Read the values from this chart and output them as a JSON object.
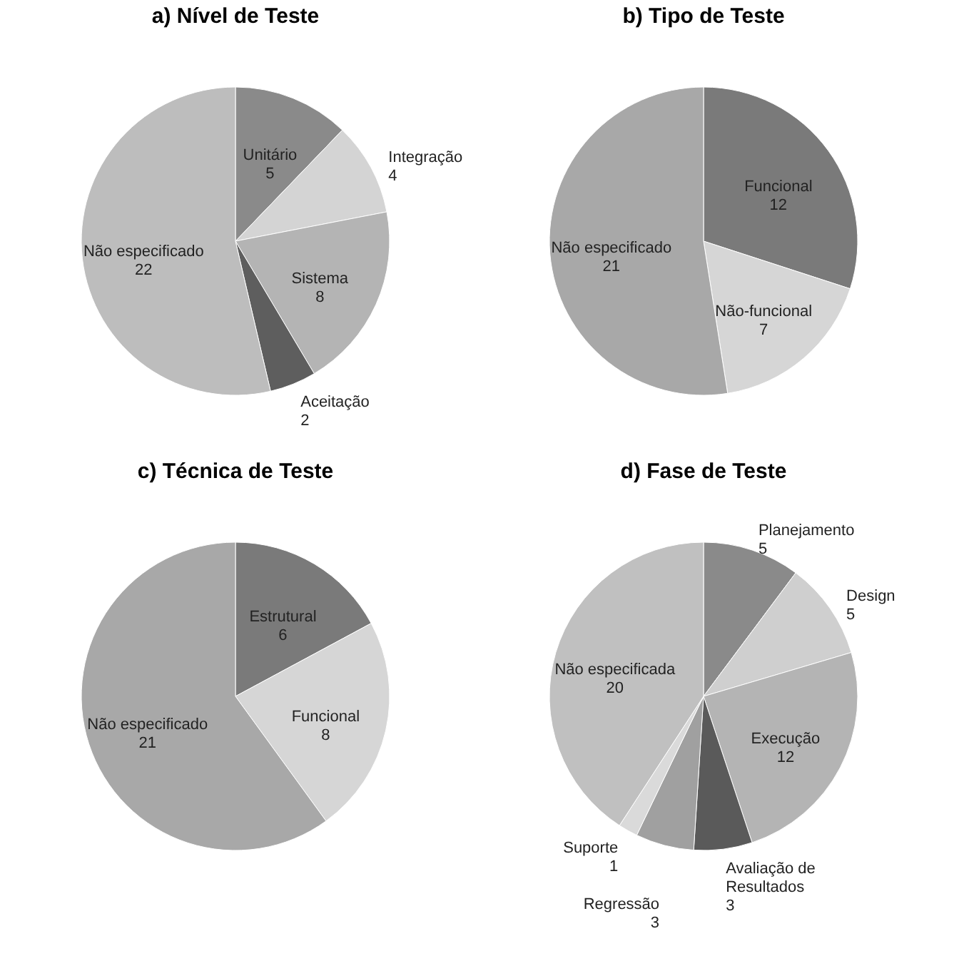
{
  "chart_data": [
    {
      "type": "pie",
      "title": "a) Nível de Teste",
      "categories": [
        "Unitário",
        "Integração",
        "Sistema",
        "Aceitação",
        "Não especificado"
      ],
      "values": [
        5,
        4,
        8,
        2,
        22
      ],
      "colors": [
        "#8a8a8a",
        "#d4d4d4",
        "#b4b4b4",
        "#5e5e5e",
        "#bdbdbd"
      ],
      "data_labels": true,
      "legend": false
    },
    {
      "type": "pie",
      "title": "b) Tipo de Teste",
      "categories": [
        "Funcional",
        "Não-funcional",
        "Não especificado"
      ],
      "values": [
        12,
        7,
        21
      ],
      "colors": [
        "#7a7a7a",
        "#d6d6d6",
        "#a8a8a8"
      ],
      "data_labels": true,
      "legend": false
    },
    {
      "type": "pie",
      "title": "c) Técnica de Teste",
      "categories": [
        "Estrutural",
        "Funcional",
        "Não especificado"
      ],
      "values": [
        6,
        8,
        21
      ],
      "colors": [
        "#7a7a7a",
        "#d6d6d6",
        "#a8a8a8"
      ],
      "data_labels": true,
      "legend": false
    },
    {
      "type": "pie",
      "title": "d) Fase de Teste",
      "categories": [
        "Planejamento",
        "Design",
        "Execução",
        "Avaliação de Resultados",
        "Regressão",
        "Suporte",
        "Não especificada"
      ],
      "values": [
        5,
        5,
        12,
        3,
        3,
        1,
        20
      ],
      "colors": [
        "#8a8a8a",
        "#cfcfcf",
        "#b4b4b4",
        "#5a5a5a",
        "#a0a0a0",
        "#dadada",
        "#c0c0c0"
      ],
      "data_labels": true,
      "legend": false
    }
  ]
}
